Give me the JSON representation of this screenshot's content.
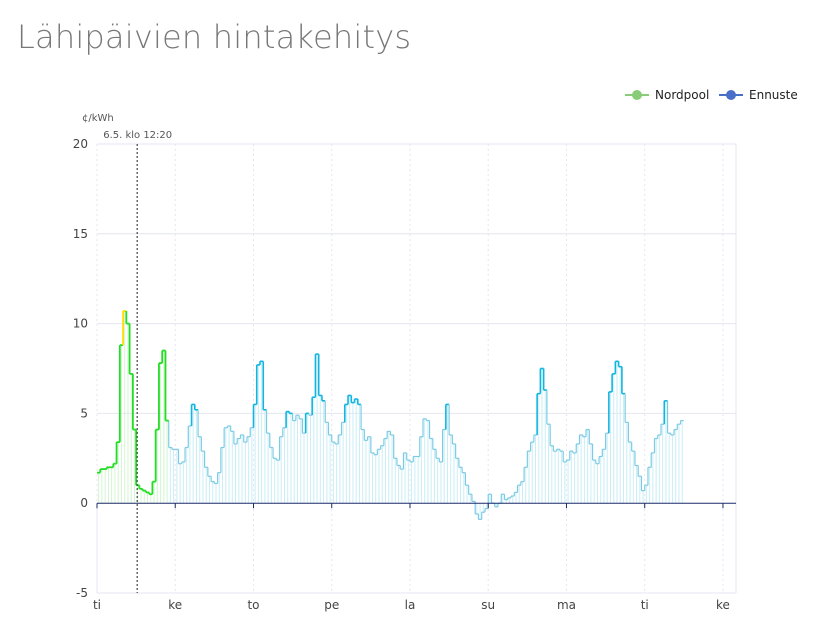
{
  "page": {
    "title": "Lähipäivien hintakehitys"
  },
  "chart_data": {
    "type": "line",
    "title": "",
    "xlabel": "",
    "ylabel": "¢/kWh",
    "ylim": [
      -5,
      20
    ],
    "yticks": [
      -5,
      0,
      5,
      10,
      15,
      20
    ],
    "xlim": [
      0,
      196
    ],
    "x_unit": "hours",
    "x_ticks": [
      {
        "label": "ti",
        "x": 0
      },
      {
        "label": "ke",
        "x": 24
      },
      {
        "label": "to",
        "x": 48
      },
      {
        "label": "pe",
        "x": 72
      },
      {
        "label": "la",
        "x": 96
      },
      {
        "label": "su",
        "x": 120
      },
      {
        "label": "ma",
        "x": 144
      },
      {
        "label": "ti",
        "x": 168
      },
      {
        "label": "ke",
        "x": 192
      }
    ],
    "grid": true,
    "legend_position": "top-right",
    "now_marker": {
      "label": "6.5. klo 12:20",
      "x": 12.33
    },
    "colors": {
      "nordpool": "#22dd22",
      "nordpool_peak": "#ffdd00",
      "ennuste_strong": "#11b5e0",
      "ennuste_light": "#7ccbe4",
      "legend_nordpool": "#88cc77",
      "legend_ennuste": "#4a6fc8",
      "axis": "#1b2a6b",
      "grid": "#e4e6f0",
      "now": "#444444"
    },
    "series": [
      {
        "name": "Nordpool",
        "values": [
          1.7,
          1.9,
          1.9,
          2.0,
          2.0,
          2.2,
          3.4,
          8.8,
          10.7,
          10.0,
          7.2,
          4.1,
          1.0,
          0.8,
          0.7,
          0.6,
          0.5,
          1.2,
          4.1,
          7.8,
          8.5,
          4.6
        ]
      },
      {
        "name": "Ennuste",
        "values": [
          3.1,
          3.0,
          3.0,
          2.2,
          2.3,
          3.1,
          4.3,
          5.5,
          5.2,
          3.7,
          2.9,
          2.0,
          1.5,
          1.2,
          1.1,
          1.7,
          3.1,
          4.2,
          4.3,
          4.0,
          3.3,
          3.6,
          3.8,
          3.4,
          3.7,
          4.2,
          5.5,
          7.7,
          7.9,
          5.2,
          3.9,
          3.1,
          2.5,
          2.4,
          3.7,
          4.2,
          5.1,
          5.0,
          4.6,
          4.9,
          4.7,
          3.9,
          5.0,
          4.9,
          5.9,
          8.3,
          6.0,
          5.7,
          4.5,
          3.8,
          3.4,
          3.3,
          3.8,
          4.5,
          5.5,
          6.0,
          5.6,
          5.8,
          5.5,
          4.1,
          3.5,
          3.7,
          2.8,
          2.7,
          3.0,
          3.2,
          3.6,
          4.0,
          3.8,
          2.5,
          2.1,
          1.9,
          2.8,
          2.4,
          2.3,
          2.6,
          2.6,
          3.7,
          4.7,
          4.6,
          3.6,
          3.0,
          2.5,
          2.3,
          4.1,
          5.5,
          3.8,
          3.3,
          2.5,
          2.0,
          1.7,
          1.0,
          0.5,
          0.1,
          -0.6,
          -0.9,
          -0.5,
          -0.3,
          0.5,
          0.0,
          -0.2,
          0.0,
          0.5,
          0.2,
          0.3,
          0.4,
          0.6,
          1.0,
          1.2,
          2.0,
          2.9,
          3.4,
          3.8,
          6.1,
          7.5,
          6.3,
          4.4,
          3.2,
          2.9,
          3.0,
          2.9,
          2.3,
          2.4,
          2.9,
          2.8,
          3.3,
          3.8,
          3.7,
          4.1,
          3.3,
          2.4,
          2.2,
          2.6,
          3.0,
          3.9,
          6.2,
          7.2,
          7.9,
          7.6,
          6.1,
          4.5,
          3.4,
          2.9,
          2.1,
          1.5,
          0.7,
          1.0,
          2.0,
          2.8,
          3.6,
          3.8,
          4.4,
          5.7,
          3.9,
          3.8,
          4.1,
          4.4,
          4.6
        ]
      }
    ]
  },
  "legend": {
    "items": [
      {
        "label": "Nordpool"
      },
      {
        "label": "Ennuste"
      }
    ]
  }
}
